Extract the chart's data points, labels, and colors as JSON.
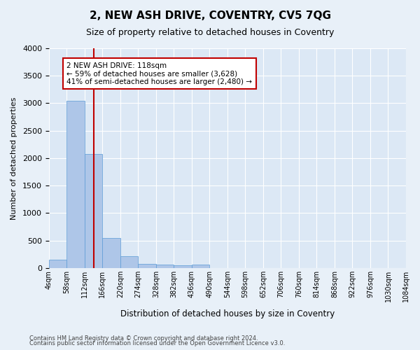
{
  "title": "2, NEW ASH DRIVE, COVENTRY, CV5 7QG",
  "subtitle": "Size of property relative to detached houses in Coventry",
  "xlabel": "Distribution of detached houses by size in Coventry",
  "ylabel": "Number of detached properties",
  "footnote1": "Contains HM Land Registry data © Crown copyright and database right 2024.",
  "footnote2": "Contains public sector information licensed under the Open Government Licence v3.0.",
  "tick_labels": [
    "4sqm",
    "58sqm",
    "112sqm",
    "166sqm",
    "220sqm",
    "274sqm",
    "328sqm",
    "382sqm",
    "436sqm",
    "490sqm",
    "544sqm",
    "598sqm",
    "652sqm",
    "706sqm",
    "760sqm",
    "814sqm",
    "868sqm",
    "922sqm",
    "976sqm",
    "1030sqm",
    "1084sqm"
  ],
  "bar_values": [
    150,
    3050,
    2075,
    550,
    215,
    80,
    60,
    50,
    60,
    0,
    0,
    0,
    0,
    0,
    0,
    0,
    0,
    0,
    0,
    0
  ],
  "bar_color": "#aec6e8",
  "bar_edge_color": "#5b9bd5",
  "vline_x": 2.0,
  "vline_color": "#c00000",
  "annotation_title": "2 NEW ASH DRIVE: 118sqm",
  "annotation_line2": "← 59% of detached houses are smaller (3,628)",
  "annotation_line3": "41% of semi-detached houses are larger (2,480) →",
  "annotation_box_color": "#c00000",
  "ylim": [
    0,
    4000
  ],
  "yticks": [
    0,
    500,
    1000,
    1500,
    2000,
    2500,
    3000,
    3500,
    4000
  ],
  "bg_color": "#e8f0f8",
  "plot_bg_color": "#dce8f5"
}
